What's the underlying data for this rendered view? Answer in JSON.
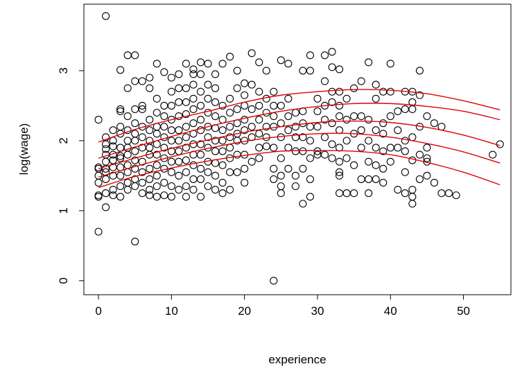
{
  "chart_data": {
    "type": "scatter",
    "title": "",
    "xlabel": "experience",
    "ylabel": "log(wage)",
    "xlim": [
      -2,
      56.5
    ],
    "ylim": [
      -0.2,
      3.95
    ],
    "xticks": [
      0,
      10,
      20,
      30,
      40,
      50
    ],
    "yticks": [
      0,
      1,
      2,
      3
    ],
    "grid": false,
    "legend": "none",
    "colors": {
      "points": "#000000",
      "curves": "#e00000"
    },
    "points": [
      [
        0,
        0.7
      ],
      [
        0,
        1.2
      ],
      [
        0,
        1.22
      ],
      [
        0,
        1.4
      ],
      [
        0,
        1.5
      ],
      [
        0,
        1.6
      ],
      [
        0,
        1.62
      ],
      [
        0,
        2.3
      ],
      [
        1,
        1.05
      ],
      [
        1,
        1.25
      ],
      [
        1,
        1.45
      ],
      [
        1,
        1.55
      ],
      [
        1,
        1.6
      ],
      [
        1,
        1.7
      ],
      [
        1,
        1.8
      ],
      [
        1,
        1.88
      ],
      [
        1,
        1.95
      ],
      [
        1,
        2.05
      ],
      [
        1,
        3.78
      ],
      [
        2,
        1.22
      ],
      [
        2,
        1.3
      ],
      [
        2,
        1.5
      ],
      [
        2,
        1.62
      ],
      [
        2,
        1.72
      ],
      [
        2,
        1.8
      ],
      [
        2,
        1.92
      ],
      [
        2,
        2.0
      ],
      [
        2,
        2.15
      ],
      [
        3,
        1.2
      ],
      [
        3,
        1.35
      ],
      [
        3,
        1.5
      ],
      [
        3,
        1.62
      ],
      [
        3,
        1.75
      ],
      [
        3,
        1.78
      ],
      [
        3,
        1.9
      ],
      [
        3,
        2.1
      ],
      [
        3,
        2.2
      ],
      [
        3,
        2.42
      ],
      [
        3,
        2.45
      ],
      [
        3,
        3.01
      ],
      [
        4,
        1.3
      ],
      [
        4,
        1.4
      ],
      [
        4,
        1.55
      ],
      [
        4,
        1.65
      ],
      [
        4,
        1.8
      ],
      [
        4,
        1.9
      ],
      [
        4,
        2.0
      ],
      [
        4,
        2.15
      ],
      [
        4,
        2.35
      ],
      [
        4,
        2.75
      ],
      [
        4,
        3.22
      ],
      [
        5,
        0.56
      ],
      [
        5,
        1.35
      ],
      [
        5,
        1.45
      ],
      [
        5,
        1.6
      ],
      [
        5,
        1.72
      ],
      [
        5,
        1.85
      ],
      [
        5,
        2.0
      ],
      [
        5,
        2.1
      ],
      [
        5,
        2.25
      ],
      [
        5,
        2.45
      ],
      [
        5,
        2.85
      ],
      [
        5,
        3.22
      ],
      [
        6,
        1.25
      ],
      [
        6,
        1.4
      ],
      [
        6,
        1.55
      ],
      [
        6,
        1.7
      ],
      [
        6,
        1.9
      ],
      [
        6,
        2.05
      ],
      [
        6,
        2.2
      ],
      [
        6,
        2.45
      ],
      [
        6,
        2.5
      ],
      [
        6,
        2.85
      ],
      [
        7,
        1.22
      ],
      [
        7,
        1.3
      ],
      [
        7,
        1.45
      ],
      [
        7,
        1.6
      ],
      [
        7,
        1.8
      ],
      [
        7,
        1.9
      ],
      [
        7,
        2.0
      ],
      [
        7,
        2.15
      ],
      [
        7,
        2.3
      ],
      [
        7,
        2.75
      ],
      [
        7,
        2.9
      ],
      [
        8,
        1.2
      ],
      [
        8,
        1.35
      ],
      [
        8,
        1.5
      ],
      [
        8,
        1.65
      ],
      [
        8,
        1.8
      ],
      [
        8,
        1.95
      ],
      [
        8,
        2.1
      ],
      [
        8,
        2.2
      ],
      [
        8,
        2.4
      ],
      [
        8,
        2.6
      ],
      [
        8,
        3.1
      ],
      [
        9,
        1.22
      ],
      [
        9,
        1.4
      ],
      [
        9,
        1.6
      ],
      [
        9,
        1.75
      ],
      [
        9,
        1.9
      ],
      [
        9,
        2.05
      ],
      [
        9,
        2.2
      ],
      [
        9,
        2.35
      ],
      [
        9,
        2.5
      ],
      [
        9,
        2.98
      ],
      [
        10,
        1.2
      ],
      [
        10,
        1.35
      ],
      [
        10,
        1.55
      ],
      [
        10,
        1.7
      ],
      [
        10,
        1.85
      ],
      [
        10,
        2.0
      ],
      [
        10,
        2.15
      ],
      [
        10,
        2.3
      ],
      [
        10,
        2.5
      ],
      [
        10,
        2.7
      ],
      [
        10,
        2.9
      ],
      [
        11,
        1.3
      ],
      [
        11,
        1.5
      ],
      [
        11,
        1.7
      ],
      [
        11,
        1.85
      ],
      [
        11,
        2.0
      ],
      [
        11,
        2.15
      ],
      [
        11,
        2.35
      ],
      [
        11,
        2.55
      ],
      [
        11,
        2.75
      ],
      [
        11,
        2.95
      ],
      [
        12,
        1.2
      ],
      [
        12,
        1.35
      ],
      [
        12,
        1.55
      ],
      [
        12,
        1.72
      ],
      [
        12,
        1.9
      ],
      [
        12,
        2.05
      ],
      [
        12,
        2.2
      ],
      [
        12,
        2.38
      ],
      [
        12,
        2.55
      ],
      [
        12,
        2.75
      ],
      [
        12,
        3.1
      ],
      [
        13,
        1.3
      ],
      [
        13,
        1.45
      ],
      [
        13,
        1.65
      ],
      [
        13,
        1.8
      ],
      [
        13,
        1.95
      ],
      [
        13,
        2.1
      ],
      [
        13,
        2.25
      ],
      [
        13,
        2.45
      ],
      [
        13,
        2.6
      ],
      [
        13,
        2.8
      ],
      [
        13,
        2.95
      ],
      [
        13,
        3.02
      ],
      [
        14,
        1.2
      ],
      [
        14,
        1.45
      ],
      [
        14,
        1.6
      ],
      [
        14,
        1.8
      ],
      [
        14,
        1.95
      ],
      [
        14,
        2.15
      ],
      [
        14,
        2.3
      ],
      [
        14,
        2.5
      ],
      [
        14,
        2.7
      ],
      [
        14,
        2.95
      ],
      [
        14,
        3.12
      ],
      [
        15,
        1.35
      ],
      [
        15,
        1.55
      ],
      [
        15,
        1.7
      ],
      [
        15,
        1.9
      ],
      [
        15,
        2.05
      ],
      [
        15,
        2.2
      ],
      [
        15,
        2.4
      ],
      [
        15,
        2.6
      ],
      [
        15,
        2.8
      ],
      [
        15,
        3.1
      ],
      [
        16,
        1.3
      ],
      [
        16,
        1.5
      ],
      [
        16,
        1.68
      ],
      [
        16,
        1.85
      ],
      [
        16,
        2.0
      ],
      [
        16,
        2.18
      ],
      [
        16,
        2.35
      ],
      [
        16,
        2.55
      ],
      [
        16,
        2.75
      ],
      [
        16,
        2.95
      ],
      [
        17,
        1.25
      ],
      [
        17,
        1.4
      ],
      [
        17,
        1.65
      ],
      [
        17,
        1.85
      ],
      [
        17,
        2.0
      ],
      [
        17,
        2.15
      ],
      [
        17,
        2.3
      ],
      [
        17,
        2.5
      ],
      [
        17,
        3.1
      ],
      [
        18,
        1.3
      ],
      [
        18,
        1.55
      ],
      [
        18,
        1.75
      ],
      [
        18,
        1.9
      ],
      [
        18,
        2.05
      ],
      [
        18,
        2.2
      ],
      [
        18,
        2.4
      ],
      [
        18,
        2.6
      ],
      [
        18,
        3.2
      ],
      [
        19,
        1.55
      ],
      [
        19,
        1.8
      ],
      [
        19,
        2.0
      ],
      [
        19,
        2.1
      ],
      [
        19,
        2.25
      ],
      [
        19,
        2.45
      ],
      [
        19,
        2.75
      ],
      [
        19,
        3.0
      ],
      [
        20,
        1.4
      ],
      [
        20,
        1.6
      ],
      [
        20,
        1.8
      ],
      [
        20,
        2.0
      ],
      [
        20,
        2.15
      ],
      [
        20,
        2.3
      ],
      [
        20,
        2.5
      ],
      [
        20,
        2.65
      ],
      [
        20,
        2.82
      ],
      [
        21,
        1.7
      ],
      [
        21,
        2.05
      ],
      [
        21,
        2.2
      ],
      [
        21,
        2.45
      ],
      [
        21,
        2.8
      ],
      [
        21,
        3.25
      ],
      [
        22,
        1.75
      ],
      [
        22,
        1.9
      ],
      [
        22,
        2.1
      ],
      [
        22,
        2.3
      ],
      [
        22,
        2.5
      ],
      [
        22,
        2.7
      ],
      [
        22,
        3.12
      ],
      [
        23,
        1.92
      ],
      [
        23,
        2.05
      ],
      [
        23,
        2.2
      ],
      [
        23,
        2.4
      ],
      [
        23,
        2.6
      ],
      [
        23,
        3.0
      ],
      [
        24,
        0.0
      ],
      [
        24,
        1.45
      ],
      [
        24,
        1.6
      ],
      [
        24,
        1.9
      ],
      [
        24,
        2.2
      ],
      [
        24,
        2.35
      ],
      [
        24,
        2.5
      ],
      [
        24,
        2.7
      ],
      [
        25,
        1.25
      ],
      [
        25,
        1.35
      ],
      [
        25,
        1.5
      ],
      [
        25,
        1.75
      ],
      [
        25,
        2.05
      ],
      [
        25,
        2.25
      ],
      [
        25,
        2.5
      ],
      [
        25,
        3.15
      ],
      [
        26,
        1.6
      ],
      [
        26,
        1.9
      ],
      [
        26,
        2.15
      ],
      [
        26,
        2.35
      ],
      [
        26,
        2.6
      ],
      [
        26,
        3.1
      ],
      [
        27,
        1.35
      ],
      [
        27,
        1.5
      ],
      [
        27,
        1.85
      ],
      [
        27,
        2.05
      ],
      [
        27,
        2.2
      ],
      [
        27,
        2.4
      ],
      [
        28,
        1.1
      ],
      [
        28,
        1.6
      ],
      [
        28,
        1.85
      ],
      [
        28,
        2.05
      ],
      [
        28,
        2.25
      ],
      [
        28,
        2.42
      ],
      [
        28,
        3.0
      ],
      [
        29,
        1.2
      ],
      [
        29,
        1.45
      ],
      [
        29,
        1.75
      ],
      [
        29,
        2.0
      ],
      [
        29,
        2.2
      ],
      [
        29,
        3.0
      ],
      [
        29,
        3.22
      ],
      [
        30,
        1.8
      ],
      [
        30,
        1.85
      ],
      [
        30,
        2.2
      ],
      [
        30,
        2.42
      ],
      [
        30,
        2.6
      ],
      [
        31,
        1.8
      ],
      [
        31,
        2.05
      ],
      [
        31,
        2.3
      ],
      [
        31,
        2.5
      ],
      [
        31,
        2.85
      ],
      [
        31,
        3.22
      ],
      [
        32,
        1.75
      ],
      [
        32,
        1.95
      ],
      [
        32,
        2.25
      ],
      [
        32,
        2.55
      ],
      [
        32,
        2.7
      ],
      [
        32,
        3.05
      ],
      [
        32,
        3.27
      ],
      [
        33,
        1.25
      ],
      [
        33,
        1.5
      ],
      [
        33,
        1.55
      ],
      [
        33,
        1.7
      ],
      [
        33,
        1.9
      ],
      [
        33,
        2.15
      ],
      [
        33,
        2.35
      ],
      [
        33,
        2.5
      ],
      [
        33,
        2.7
      ],
      [
        33,
        3.02
      ],
      [
        34,
        1.25
      ],
      [
        34,
        1.75
      ],
      [
        34,
        2.0
      ],
      [
        34,
        2.3
      ],
      [
        34,
        2.6
      ],
      [
        35,
        1.25
      ],
      [
        35,
        1.65
      ],
      [
        35,
        2.1
      ],
      [
        35,
        2.35
      ],
      [
        35,
        2.75
      ],
      [
        36,
        1.45
      ],
      [
        36,
        1.9
      ],
      [
        36,
        2.15
      ],
      [
        36,
        2.35
      ],
      [
        36,
        2.85
      ],
      [
        37,
        1.25
      ],
      [
        37,
        1.45
      ],
      [
        37,
        1.7
      ],
      [
        37,
        2.0
      ],
      [
        37,
        2.3
      ],
      [
        37,
        3.12
      ],
      [
        38,
        1.45
      ],
      [
        38,
        1.65
      ],
      [
        38,
        1.9
      ],
      [
        38,
        2.15
      ],
      [
        38,
        2.6
      ],
      [
        38,
        2.8
      ],
      [
        39,
        1.4
      ],
      [
        39,
        1.6
      ],
      [
        39,
        1.85
      ],
      [
        39,
        2.1
      ],
      [
        39,
        2.25
      ],
      [
        39,
        2.7
      ],
      [
        40,
        1.7
      ],
      [
        40,
        1.9
      ],
      [
        40,
        2.35
      ],
      [
        40,
        2.7
      ],
      [
        40,
        3.1
      ],
      [
        41,
        1.3
      ],
      [
        41,
        1.9
      ],
      [
        41,
        2.15
      ],
      [
        41,
        2.42
      ],
      [
        42,
        1.25
      ],
      [
        42,
        1.55
      ],
      [
        42,
        1.85
      ],
      [
        42,
        2.0
      ],
      [
        42,
        2.45
      ],
      [
        42,
        2.7
      ],
      [
        43,
        1.1
      ],
      [
        43,
        1.2
      ],
      [
        43,
        1.3
      ],
      [
        43,
        1.72
      ],
      [
        43,
        2.05
      ],
      [
        43,
        2.45
      ],
      [
        43,
        2.55
      ],
      [
        43,
        2.7
      ],
      [
        44,
        1.45
      ],
      [
        44,
        1.8
      ],
      [
        44,
        2.2
      ],
      [
        44,
        2.65
      ],
      [
        44,
        3.0
      ],
      [
        45,
        1.5
      ],
      [
        45,
        1.7
      ],
      [
        45,
        1.75
      ],
      [
        45,
        1.9
      ],
      [
        45,
        2.35
      ],
      [
        46,
        1.4
      ],
      [
        46,
        2.25
      ],
      [
        47,
        1.25
      ],
      [
        47,
        2.2
      ],
      [
        48,
        1.25
      ],
      [
        49,
        1.22
      ],
      [
        54,
        1.8
      ],
      [
        55,
        1.95
      ]
    ],
    "curves": [
      {
        "x": [
          0,
          5,
          10,
          15,
          20,
          25,
          30,
          35,
          40,
          45,
          50,
          55
        ],
        "y": [
          1.98,
          2.16,
          2.3,
          2.42,
          2.55,
          2.65,
          2.7,
          2.73,
          2.72,
          2.67,
          2.57,
          2.44
        ]
      },
      {
        "x": [
          0,
          5,
          10,
          15,
          20,
          25,
          30,
          35,
          40,
          45,
          50,
          55
        ],
        "y": [
          1.75,
          1.91,
          2.06,
          2.2,
          2.32,
          2.42,
          2.49,
          2.53,
          2.53,
          2.49,
          2.42,
          2.3
        ]
      },
      {
        "x": [
          0,
          5,
          10,
          15,
          20,
          25,
          30,
          35,
          40,
          45,
          50,
          55
        ],
        "y": [
          1.6,
          1.75,
          1.89,
          2.01,
          2.12,
          2.2,
          2.26,
          2.28,
          2.26,
          2.19,
          2.08,
          1.93
        ]
      },
      {
        "x": [
          0,
          5,
          10,
          15,
          20,
          25,
          30,
          35,
          40,
          45,
          50,
          55
        ],
        "y": [
          1.48,
          1.63,
          1.77,
          1.89,
          1.99,
          2.06,
          2.1,
          2.1,
          2.05,
          1.96,
          1.84,
          1.68
        ]
      },
      {
        "x": [
          0,
          5,
          10,
          15,
          20,
          25,
          30,
          35,
          40,
          45,
          50,
          55
        ],
        "y": [
          1.33,
          1.49,
          1.61,
          1.71,
          1.79,
          1.85,
          1.86,
          1.85,
          1.8,
          1.69,
          1.55,
          1.37
        ]
      }
    ]
  }
}
